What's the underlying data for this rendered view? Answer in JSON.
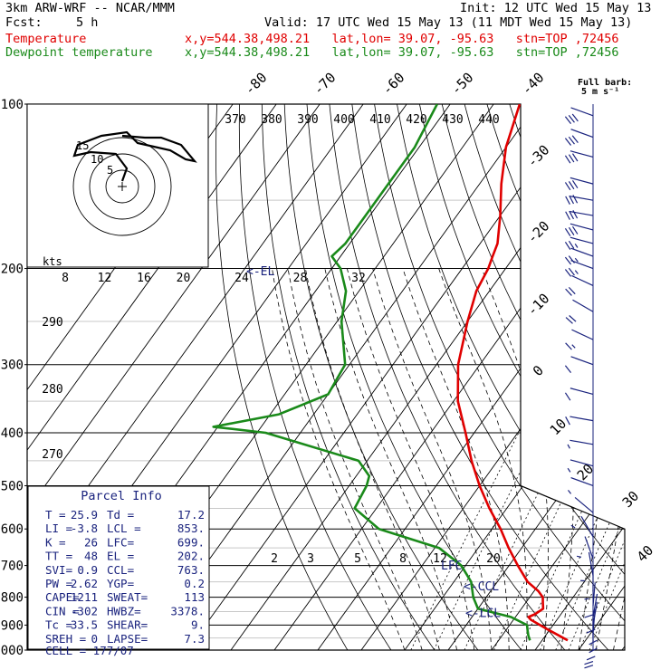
{
  "header": {
    "model": "3km ARW-WRF -- NCAR/MMM",
    "init": "Init: 12 UTC Wed 15 May 13",
    "fcst_label": "Fcst:",
    "fcst_value": "5 h",
    "valid": "Valid: 17 UTC Wed 15 May 13 (11 MDT Wed 15 May 13)",
    "line1_field": "Temperature",
    "line1_info": "x,y=544.38,498.21   lat,lon= 39.07, -95.63   stn=TOP ,72456",
    "line2_field": "Dewpoint temperature",
    "line2_info": "x,y=544.38,498.21   lat,lon= 39.07, -95.63   stn=TOP ,72456"
  },
  "colors": {
    "temperature": "#e00000",
    "dewpoint": "#1a8a1a",
    "panel": "#1a237e",
    "barb": "#1a237e"
  },
  "barb_legend": {
    "line1": "Full barb:",
    "line2": "5 m s⁻¹"
  },
  "hodograph": {
    "kts_label": "kts",
    "ring_labels": [
      "5",
      "10",
      "15"
    ]
  },
  "parcel_info": {
    "title": "Parcel Info",
    "rows": [
      [
        "T  =",
        "25.9",
        "Td =",
        "17.2"
      ],
      [
        "LI =",
        "-3.8",
        "LCL =",
        "853."
      ],
      [
        "K  =",
        "26",
        "LFC=",
        "699."
      ],
      [
        "TT =",
        "48",
        "EL =",
        "202."
      ],
      [
        "SVI=",
        "0.9",
        "CCL=",
        "763."
      ],
      [
        "PW =",
        "2.62",
        "YGP=",
        "0.2"
      ],
      [
        "CAPE=",
        "1211",
        "SWEAT=",
        "113"
      ],
      [
        "CIN =",
        "-302",
        "HWBZ=",
        "3378."
      ],
      [
        "Tc =",
        "33.5",
        "SHEAR=",
        "9."
      ],
      [
        "SREH =",
        "0",
        "LAPSE=",
        "7.3"
      ]
    ],
    "cell": "CELL = 177/07"
  },
  "chart_data": {
    "type": "line",
    "pressure_levels": [
      "100",
      "200",
      "300",
      "400",
      "500",
      "600",
      "700",
      "800",
      "900",
      "1000"
    ],
    "isotherm_labels": [
      "-80",
      "-70",
      "-60",
      "-50",
      "-40",
      "-30",
      "-20",
      "-10",
      "0",
      "10",
      "20",
      "30",
      "40"
    ],
    "theta_labels": [
      "370",
      "380",
      "390",
      "400",
      "410",
      "420",
      "430",
      "440"
    ],
    "theta_low_labels": [
      "290",
      "280",
      "270"
    ],
    "mixing_ratio_upper": [
      "8",
      "12",
      "16",
      "20",
      "24",
      "28",
      "32"
    ],
    "mixing_ratio_lower": [
      "2",
      "3",
      "5",
      "8",
      "12",
      "20"
    ],
    "level_annotations": [
      {
        "text": "<-EL",
        "p": 202
      },
      {
        "text": "LFC",
        "p": 699
      },
      {
        "text": "<-CCL",
        "p": 763
      },
      {
        "text": "<-LCL",
        "p": 853
      }
    ],
    "series": [
      {
        "name": "Temperature",
        "points": [
          [
            100,
            -74
          ],
          [
            120,
            -70
          ],
          [
            140,
            -65
          ],
          [
            160,
            -60
          ],
          [
            180,
            -56
          ],
          [
            190,
            -55
          ],
          [
            200,
            -54
          ],
          [
            220,
            -53
          ],
          [
            250,
            -50
          ],
          [
            300,
            -45
          ],
          [
            350,
            -39
          ],
          [
            400,
            -32
          ],
          [
            450,
            -26
          ],
          [
            500,
            -20
          ],
          [
            550,
            -14
          ],
          [
            600,
            -8
          ],
          [
            650,
            -3
          ],
          [
            700,
            2
          ],
          [
            750,
            7
          ],
          [
            780,
            11
          ],
          [
            800,
            13
          ],
          [
            820,
            14
          ],
          [
            840,
            15
          ],
          [
            860,
            14
          ],
          [
            870,
            13
          ],
          [
            880,
            14
          ],
          [
            900,
            17
          ],
          [
            920,
            20
          ],
          [
            940,
            23
          ],
          [
            960,
            25.9
          ]
        ]
      },
      {
        "name": "Dewpoint temperature",
        "points": [
          [
            100,
            -93
          ],
          [
            120,
            -91
          ],
          [
            140,
            -91
          ],
          [
            160,
            -91
          ],
          [
            180,
            -91
          ],
          [
            190,
            -92
          ],
          [
            200,
            -88
          ],
          [
            220,
            -83
          ],
          [
            250,
            -79
          ],
          [
            300,
            -71
          ],
          [
            340,
            -70
          ],
          [
            370,
            -78
          ],
          [
            390,
            -91
          ],
          [
            400,
            -78
          ],
          [
            450,
            -52
          ],
          [
            480,
            -47
          ],
          [
            500,
            -46
          ],
          [
            550,
            -45
          ],
          [
            600,
            -36
          ],
          [
            650,
            -19
          ],
          [
            700,
            -11
          ],
          [
            750,
            -6
          ],
          [
            800,
            -3
          ],
          [
            840,
            0
          ],
          [
            870,
            9
          ],
          [
            900,
            14
          ],
          [
            920,
            15
          ],
          [
            940,
            16
          ],
          [
            960,
            17.2
          ]
        ]
      }
    ],
    "wind_barbs": [
      {
        "p": 105,
        "dir": 250,
        "spd": 17
      },
      {
        "p": 115,
        "dir": 250,
        "spd": 16
      },
      {
        "p": 125,
        "dir": 255,
        "spd": 16
      },
      {
        "p": 140,
        "dir": 255,
        "spd": 16
      },
      {
        "p": 150,
        "dir": 260,
        "spd": 15
      },
      {
        "p": 160,
        "dir": 260,
        "spd": 15
      },
      {
        "p": 170,
        "dir": 255,
        "spd": 15
      },
      {
        "p": 180,
        "dir": 255,
        "spd": 14
      },
      {
        "p": 190,
        "dir": 250,
        "spd": 14
      },
      {
        "p": 200,
        "dir": 250,
        "spd": 13
      },
      {
        "p": 215,
        "dir": 245,
        "spd": 12
      },
      {
        "p": 240,
        "dir": 240,
        "spd": 10
      },
      {
        "p": 270,
        "dir": 245,
        "spd": 8
      },
      {
        "p": 300,
        "dir": 250,
        "spd": 7
      },
      {
        "p": 340,
        "dir": 255,
        "spd": 6
      },
      {
        "p": 380,
        "dir": 260,
        "spd": 5
      },
      {
        "p": 420,
        "dir": 260,
        "spd": 4
      },
      {
        "p": 460,
        "dir": 255,
        "spd": 4
      },
      {
        "p": 500,
        "dir": 250,
        "spd": 4
      },
      {
        "p": 560,
        "dir": 230,
        "spd": 3
      },
      {
        "p": 620,
        "dir": 210,
        "spd": 3
      },
      {
        "p": 680,
        "dir": 200,
        "spd": 4
      },
      {
        "p": 730,
        "dir": 190,
        "spd": 4
      },
      {
        "p": 780,
        "dir": 180,
        "spd": 5
      },
      {
        "p": 830,
        "dir": 175,
        "spd": 6
      },
      {
        "p": 870,
        "dir": 170,
        "spd": 7
      },
      {
        "p": 900,
        "dir": 170,
        "spd": 7
      },
      {
        "p": 930,
        "dir": 175,
        "spd": 7
      },
      {
        "p": 950,
        "dir": 180,
        "spd": 6
      },
      {
        "p": 965,
        "dir": 180,
        "spd": 5
      }
    ]
  }
}
